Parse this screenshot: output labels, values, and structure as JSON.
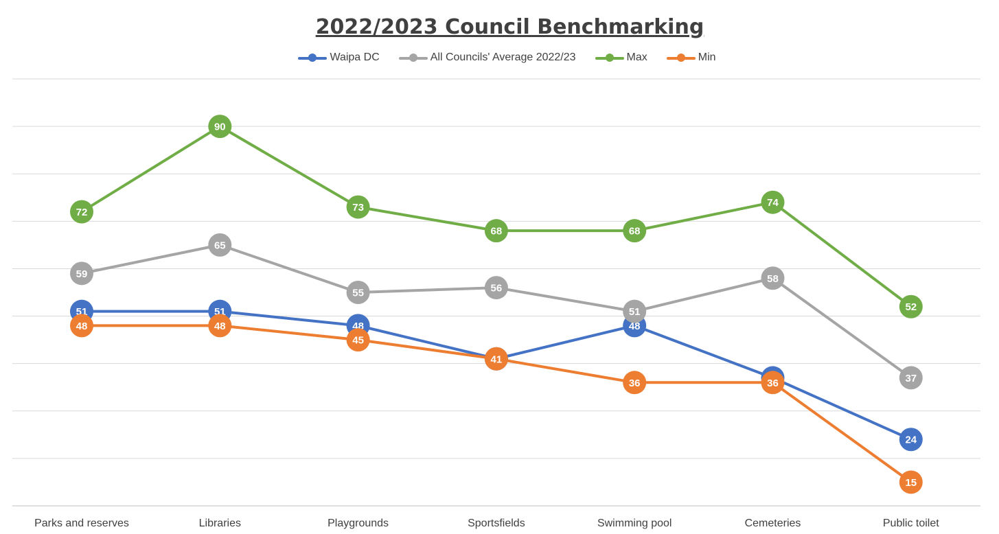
{
  "chart_data": {
    "type": "line",
    "title": "2022/2023 Council Benchmarking",
    "xlabel": "",
    "ylabel": "",
    "categories": [
      "Parks and reserves",
      "Libraries",
      "Playgrounds",
      "Sportsfields",
      "Swimming pool",
      "Cemeteries",
      "Public toilet"
    ],
    "ylim": [
      10,
      100
    ],
    "grid": true,
    "legend_position": "top",
    "data_labels": true,
    "series": [
      {
        "name": "Waipa DC",
        "color": "#4472C4",
        "values": [
          51,
          51,
          48,
          41,
          48,
          37,
          24
        ]
      },
      {
        "name": "All Councils' Average 2022/23",
        "color": "#A5A5A5",
        "values": [
          59,
          65,
          55,
          56,
          51,
          58,
          37
        ]
      },
      {
        "name": "Max",
        "color": "#70AD47",
        "values": [
          72,
          90,
          73,
          68,
          68,
          74,
          52
        ]
      },
      {
        "name": "Min",
        "color": "#ED7D31",
        "values": [
          48,
          48,
          45,
          41,
          36,
          36,
          15
        ]
      }
    ]
  }
}
